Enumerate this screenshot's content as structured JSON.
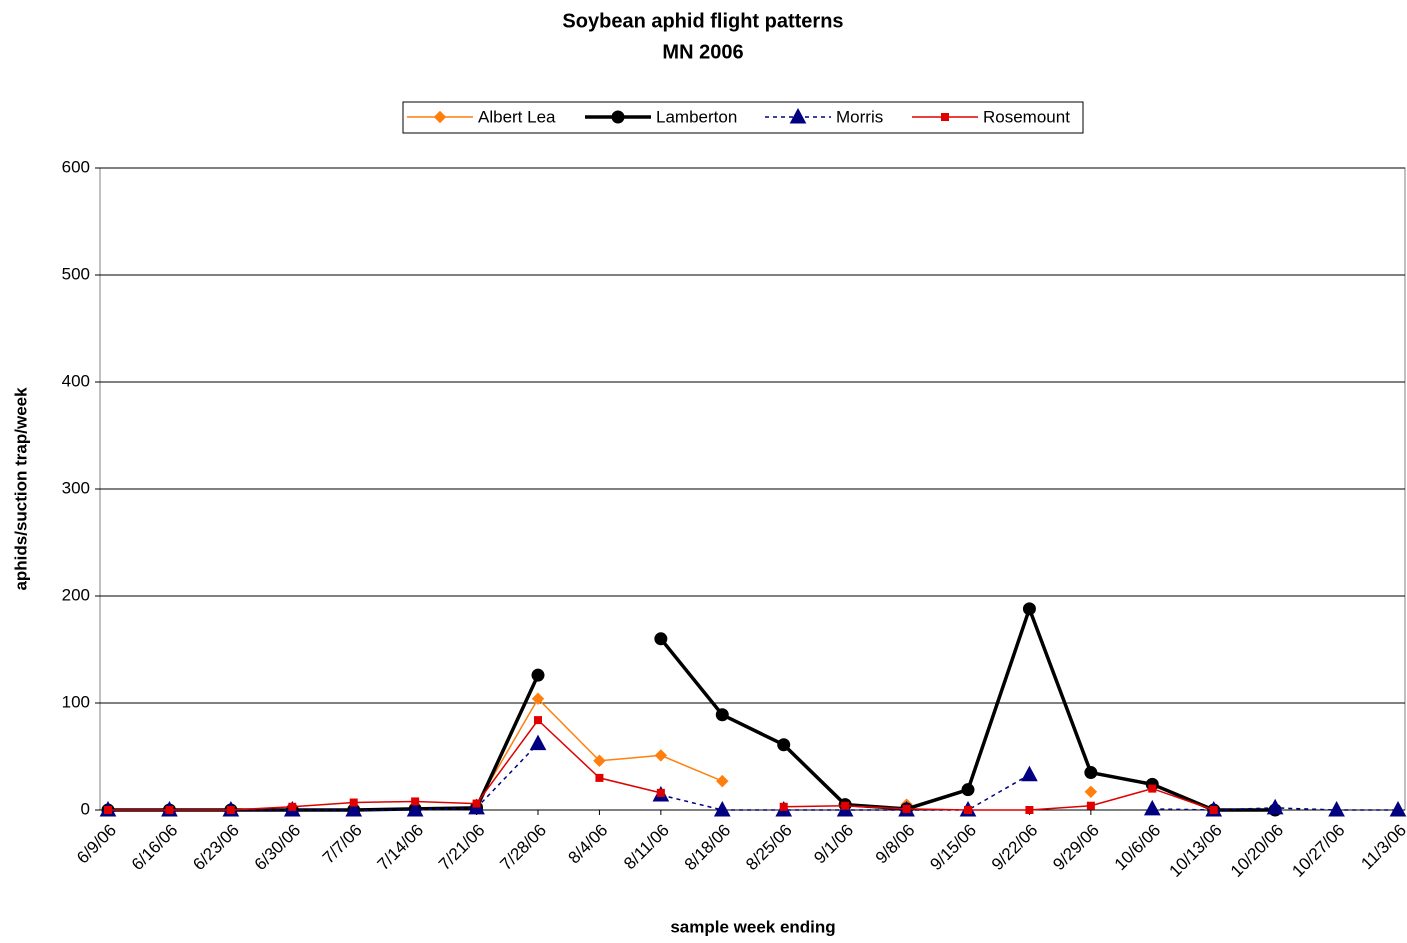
{
  "chart_data": {
    "type": "line",
    "title": [
      "Soybean aphid flight patterns",
      "MN 2006"
    ],
    "x_label": "sample week ending",
    "y_label": "aphids/suction trap/week",
    "categories": [
      "6/9/06",
      "6/16/06",
      "6/23/06",
      "6/30/06",
      "7/7/06",
      "7/14/06",
      "7/21/06",
      "7/28/06",
      "8/4/06",
      "8/11/06",
      "8/18/06",
      "8/25/06",
      "9/1/06",
      "9/8/06",
      "9/15/06",
      "9/22/06",
      "9/29/06",
      "10/6/06",
      "10/13/06",
      "10/20/06",
      "10/27/06",
      "11/3/06"
    ],
    "ylim": [
      0,
      600
    ],
    "yticks": [
      0,
      100,
      200,
      300,
      400,
      500,
      600
    ],
    "grid": true,
    "legend": "top",
    "series": [
      {
        "name": "Albert Lea",
        "color": "#ff7f0e",
        "marker": "diamond",
        "dash": false,
        "width": 1.5,
        "values": [
          null,
          null,
          null,
          null,
          null,
          null,
          5,
          104,
          46,
          51,
          27,
          null,
          null,
          5,
          null,
          null,
          17,
          null,
          null,
          null,
          null,
          null
        ]
      },
      {
        "name": "Lamberton",
        "color": "#000000",
        "marker": "circle",
        "dash": false,
        "width": 3.5,
        "values": [
          0,
          0,
          0,
          0,
          0,
          1,
          2,
          126,
          null,
          160,
          89,
          61,
          5,
          1,
          19,
          188,
          35,
          24,
          0,
          0,
          null,
          null
        ]
      },
      {
        "name": "Morris",
        "color": "#000080",
        "marker": "triangle",
        "dash": true,
        "width": 1.5,
        "values": [
          0,
          0,
          0,
          0,
          0,
          0,
          2,
          62,
          null,
          14,
          0,
          0,
          0,
          0,
          0,
          33,
          null,
          1,
          0,
          2,
          0,
          0
        ]
      },
      {
        "name": "Rosemount",
        "color": "#e00000",
        "marker": "square",
        "dash": false,
        "width": 1.5,
        "values": [
          0,
          0,
          0,
          3,
          7,
          8,
          6,
          84,
          30,
          16,
          null,
          3,
          4,
          1,
          0,
          0,
          4,
          20,
          0,
          null,
          null,
          null
        ]
      }
    ]
  }
}
